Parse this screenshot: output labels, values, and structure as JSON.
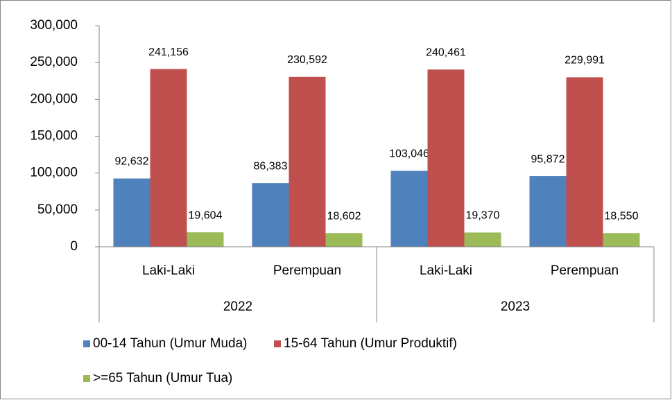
{
  "chart_data": {
    "type": "bar",
    "categories": [
      "Laki-Laki",
      "Perempuan",
      "Laki-Laki",
      "Perempuan"
    ],
    "group_labels": [
      "2022",
      "2023"
    ],
    "series": [
      {
        "name": "00-14 Tahun (Umur Muda)",
        "color": "#4f81bd",
        "values": [
          92632,
          86383,
          103046,
          95872
        ],
        "value_labels": [
          "92,632",
          "86,383",
          "103,046",
          "95,872"
        ]
      },
      {
        "name": "15-64 Tahun (Umur Produktif)",
        "color": "#c0504d",
        "values": [
          241156,
          230592,
          240461,
          229991
        ],
        "value_labels": [
          "241,156",
          "230,592",
          "240,461",
          "229,991"
        ]
      },
      {
        "name": ">=65 Tahun (Umur Tua)",
        "color": "#9bbb59",
        "values": [
          19604,
          18602,
          19370,
          18550
        ],
        "value_labels": [
          "19,604",
          "18,602",
          "19,370",
          "18,550"
        ]
      }
    ],
    "ylim": [
      0,
      300000
    ],
    "yticks": [
      0,
      {
        "value": 50000,
        "label": "50,000"
      },
      {
        "value": 100000,
        "label": "100,000"
      },
      {
        "value": 150000,
        "label": "150,000"
      },
      {
        "value": 200000,
        "label": "200,000"
      },
      {
        "value": 250000,
        "label": "250,000"
      },
      {
        "value": 300000,
        "label": "300,000"
      }
    ],
    "legend": "bottom"
  }
}
